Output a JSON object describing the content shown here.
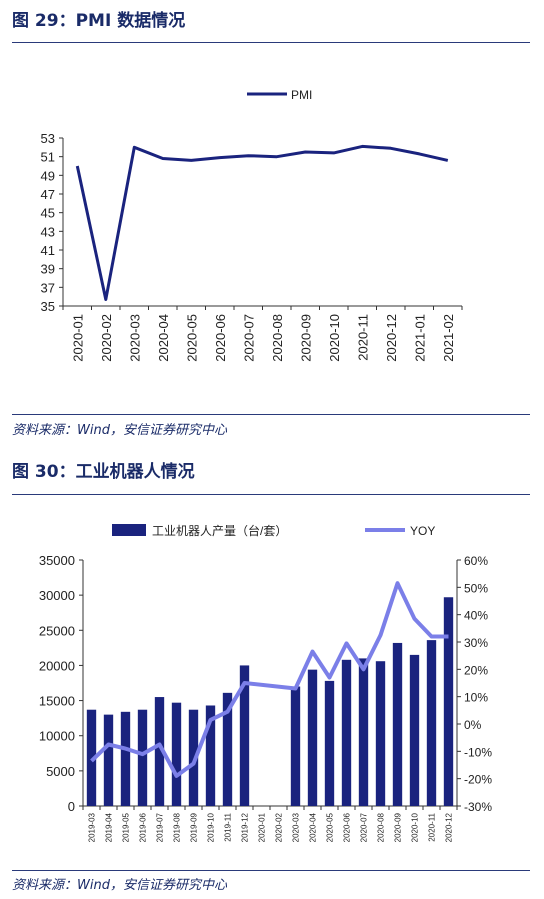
{
  "figures": [
    {
      "title": "图 29：PMI 数据情况",
      "source": "资料来源：Wind，安信证券研究中心"
    },
    {
      "title": "图 30：工业机器人情况",
      "source": "资料来源：Wind，安信证券研究中心"
    }
  ],
  "colors": {
    "navy": "#1a237e",
    "periwinkle": "#7b7fe8",
    "title": "#1a2b68"
  },
  "chart_data": [
    {
      "type": "line",
      "title": "",
      "legend": [
        "PMI"
      ],
      "legend_position": "top",
      "categories": [
        "2020-01",
        "2020-02",
        "2020-03",
        "2020-04",
        "2020-05",
        "2020-06",
        "2020-07",
        "2020-08",
        "2020-09",
        "2020-10",
        "2020-11",
        "2020-12",
        "2021-01",
        "2021-02"
      ],
      "series": [
        {
          "name": "PMI",
          "values": [
            50.0,
            35.7,
            52.0,
            50.8,
            50.6,
            50.9,
            51.1,
            51.0,
            51.5,
            51.4,
            52.1,
            51.9,
            51.3,
            50.6
          ]
        }
      ],
      "y_ticks": [
        "53",
        "51",
        "49",
        "47",
        "45",
        "43",
        "41",
        "39",
        "37",
        "35"
      ],
      "ylim": [
        35,
        53
      ],
      "grid": false
    },
    {
      "type": "bar",
      "title": "",
      "legend_position": "top",
      "categories": [
        "2019-03",
        "2019-04",
        "2019-05",
        "2019-06",
        "2019-07",
        "2019-08",
        "2019-09",
        "2019-10",
        "2019-11",
        "2019-12",
        "2020-01",
        "2020-02",
        "2020-03",
        "2020-04",
        "2020-05",
        "2020-06",
        "2020-07",
        "2020-08",
        "2020-09",
        "2020-10",
        "2020-11",
        "2020-12"
      ],
      "series": [
        {
          "name": "工业机器人产量（台/套）",
          "axis": "left",
          "type": "bar",
          "values": [
            13700,
            13000,
            13400,
            13700,
            15500,
            14700,
            13700,
            14300,
            16100,
            20000,
            null,
            null,
            17000,
            19400,
            17800,
            20800,
            21000,
            20600,
            23200,
            21500,
            23600,
            29700
          ]
        },
        {
          "name": "YOY",
          "axis": "right",
          "type": "line",
          "values": [
            -13.5,
            -7.5,
            -9.0,
            -11.0,
            -7.5,
            -19.0,
            -14.5,
            1.5,
            4.5,
            15.0,
            null,
            null,
            13.0,
            26.5,
            17.0,
            29.5,
            20.0,
            32.5,
            51.5,
            38.5,
            32.0,
            32.0
          ]
        }
      ],
      "y_left_ticks": [
        "35000",
        "30000",
        "25000",
        "20000",
        "15000",
        "10000",
        "5000",
        "0"
      ],
      "y_right_ticks": [
        "60%",
        "50%",
        "40%",
        "30%",
        "20%",
        "10%",
        "0%",
        "-10%",
        "-20%",
        "-30%"
      ],
      "ylim_left": [
        0,
        35000
      ],
      "ylim_right": [
        -30,
        60
      ],
      "grid": false
    }
  ]
}
